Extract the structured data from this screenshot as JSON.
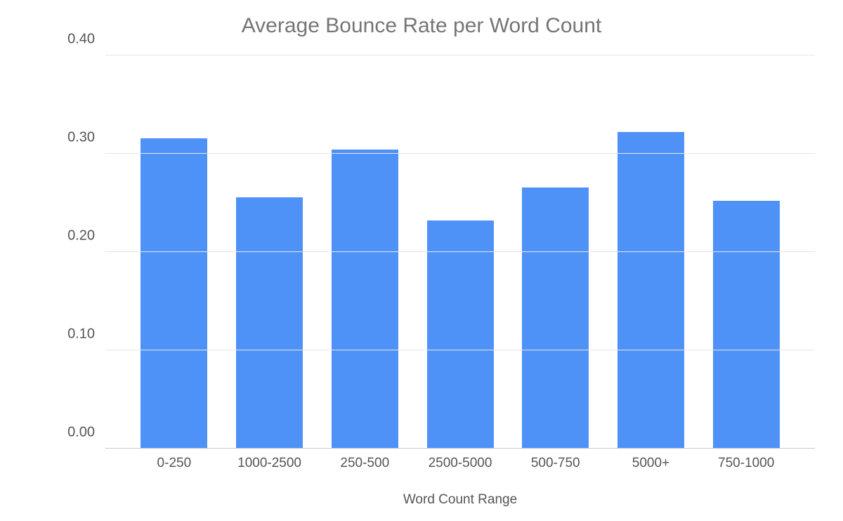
{
  "chart": {
    "type": "bar",
    "title": "Average Bounce Rate per Word Count",
    "title_fontsize": 30,
    "title_color": "#757575",
    "x_axis_title": "Word Count Range",
    "axis_label_fontsize": 19,
    "axis_label_color": "#555555",
    "categories": [
      "0-250",
      "1000-2500",
      "250-500",
      "2500-5000",
      "500-750",
      "5000+",
      "750-1000"
    ],
    "values": [
      0.316,
      0.256,
      0.304,
      0.232,
      0.266,
      0.322,
      0.252
    ],
    "bar_color": "#4f92f7",
    "bar_width": 0.7,
    "ylim": [
      0.0,
      0.4
    ],
    "yticks": [
      "0.00",
      "0.10",
      "0.20",
      "0.30",
      "0.40"
    ],
    "ytick_step": 0.1,
    "tick_fontsize": 20,
    "tick_color": "#555555",
    "background_color": "#ffffff",
    "grid_color": "#e5e5e5",
    "baseline_color": "#cccccc"
  }
}
